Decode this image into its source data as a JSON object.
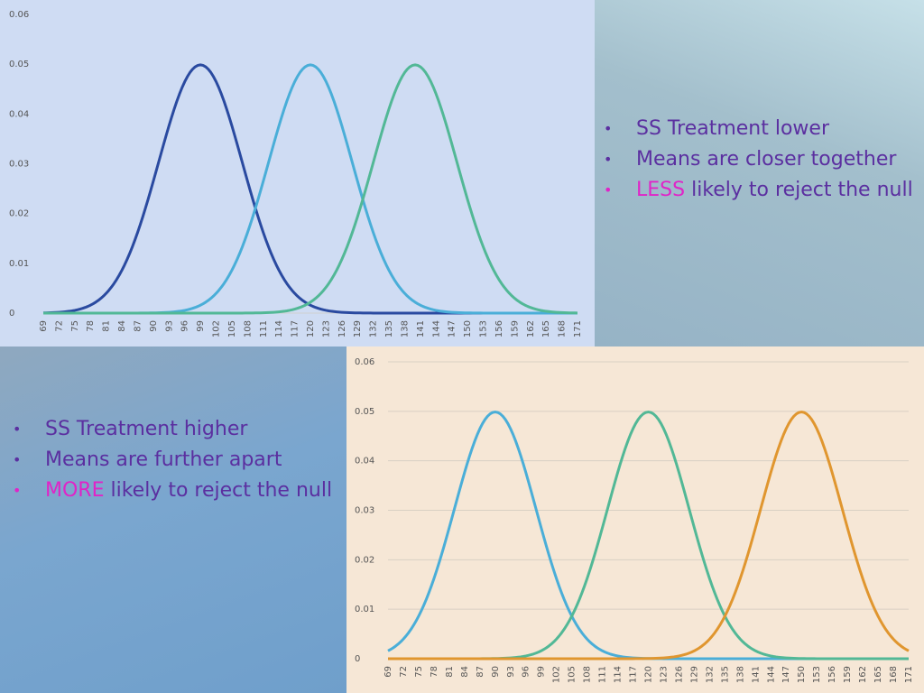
{
  "chart_data": [
    {
      "type": "line",
      "title": "",
      "xlabel": "",
      "ylabel": "",
      "ylim": [
        0,
        0.06
      ],
      "yticks": [
        "0",
        "0.01",
        "0.02",
        "0.03",
        "0.04",
        "0.05",
        "0.06"
      ],
      "x_ticks": [
        69,
        72,
        75,
        78,
        81,
        84,
        87,
        90,
        93,
        96,
        99,
        102,
        105,
        108,
        111,
        114,
        117,
        120,
        123,
        126,
        129,
        132,
        135,
        138,
        141,
        144,
        147,
        150,
        153,
        156,
        159,
        162,
        165,
        168,
        171
      ],
      "grid": false,
      "legend": "none",
      "series": [
        {
          "mean": 99,
          "sd": 8,
          "color": "#2a4aa0"
        },
        {
          "mean": 120,
          "sd": 8,
          "color": "#4aaed8"
        },
        {
          "mean": 140,
          "sd": 8,
          "color": "#52b896"
        }
      ]
    },
    {
      "type": "line",
      "title": "",
      "xlabel": "",
      "ylabel": "",
      "ylim": [
        0,
        0.06
      ],
      "yticks": [
        "0",
        "0.01",
        "0.02",
        "0.03",
        "0.04",
        "0.05",
        "0.06"
      ],
      "x_ticks": [
        69,
        72,
        75,
        78,
        81,
        84,
        87,
        90,
        93,
        96,
        99,
        102,
        105,
        108,
        111,
        114,
        117,
        120,
        123,
        126,
        129,
        132,
        135,
        138,
        141,
        144,
        147,
        150,
        153,
        156,
        159,
        162,
        165,
        168,
        171
      ],
      "grid": true,
      "legend": "none",
      "series": [
        {
          "mean": 90,
          "sd": 8,
          "color": "#4aaed8"
        },
        {
          "mean": 120,
          "sd": 8,
          "color": "#52b896"
        },
        {
          "mean": 150,
          "sd": 8,
          "color": "#e0962f"
        }
      ]
    }
  ],
  "top_right": {
    "items": [
      {
        "text": "SS Treatment lower"
      },
      {
        "text": "Means are closer together"
      },
      {
        "highlight": "LESS",
        "rest": " likely to reject the null"
      }
    ]
  },
  "bottom_left": {
    "items": [
      {
        "text": "SS Treatment higher"
      },
      {
        "text": "Means are further apart"
      },
      {
        "highlight": "MORE",
        "rest": " likely to reject the null"
      }
    ]
  },
  "colors": {
    "bullet_text": "#5b2fa0",
    "highlight": "#e024c8"
  }
}
